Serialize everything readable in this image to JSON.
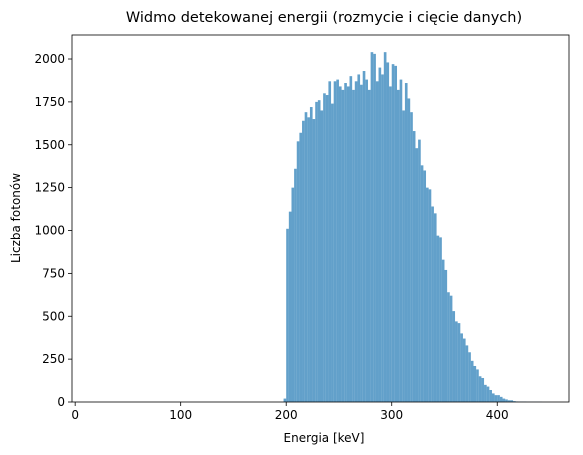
{
  "chart_data": {
    "type": "bar",
    "title": "Widmo detekowanej energii (rozmycie i cięcie danych)",
    "xlabel": "Energia [keV]",
    "ylabel": "Liczba fotonów",
    "xlim": [
      -3,
      468
    ],
    "ylim": [
      0,
      2140
    ],
    "xticks": [
      0,
      100,
      200,
      300,
      400
    ],
    "yticks": [
      0,
      250,
      500,
      750,
      1000,
      1250,
      1500,
      1750,
      2000
    ],
    "grid": false,
    "legend": "none",
    "bar_color": "#1f77b4",
    "bar_opacity": 0.7,
    "bin_width": 2.5,
    "bins_start": [
      197.5,
      200,
      202.5,
      205,
      207.5,
      210,
      212.5,
      215,
      217.5,
      220,
      222.5,
      225,
      227.5,
      230,
      232.5,
      235,
      237.5,
      240,
      242.5,
      245,
      247.5,
      250,
      252.5,
      255,
      257.5,
      260,
      262.5,
      265,
      267.5,
      270,
      272.5,
      275,
      277.5,
      280,
      282.5,
      285,
      287.5,
      290,
      292.5,
      295,
      297.5,
      300,
      302.5,
      305,
      307.5,
      310,
      312.5,
      315,
      317.5,
      320,
      322.5,
      325,
      327.5,
      330,
      332.5,
      335,
      337.5,
      340,
      342.5,
      345,
      347.5,
      350,
      352.5,
      355,
      357.5,
      360,
      362.5,
      365,
      367.5,
      370,
      372.5,
      375,
      377.5,
      380,
      382.5,
      385,
      387.5,
      390,
      392.5,
      395,
      397.5,
      400,
      402.5,
      405,
      407.5,
      410,
      412.5,
      415,
      417.5,
      420,
      422.5,
      425,
      427.5,
      430,
      432.5,
      435,
      437.5,
      440
    ],
    "values": [
      20,
      1010,
      1110,
      1250,
      1360,
      1520,
      1570,
      1640,
      1690,
      1660,
      1720,
      1650,
      1750,
      1760,
      1700,
      1800,
      1790,
      1870,
      1740,
      1870,
      1880,
      1840,
      1820,
      1860,
      1840,
      1900,
      1820,
      1870,
      1910,
      1850,
      1930,
      1880,
      1820,
      2040,
      2030,
      1870,
      1950,
      1910,
      2040,
      1980,
      1840,
      1970,
      1960,
      1820,
      1880,
      1700,
      1860,
      1770,
      1690,
      1580,
      1480,
      1530,
      1380,
      1350,
      1250,
      1240,
      1140,
      1100,
      970,
      960,
      830,
      770,
      640,
      620,
      530,
      470,
      460,
      400,
      370,
      330,
      290,
      240,
      210,
      190,
      150,
      140,
      100,
      90,
      70,
      50,
      40,
      40,
      30,
      20,
      15,
      10,
      10,
      5,
      3,
      2,
      2,
      2,
      1,
      1,
      1,
      1,
      1,
      1
    ]
  }
}
